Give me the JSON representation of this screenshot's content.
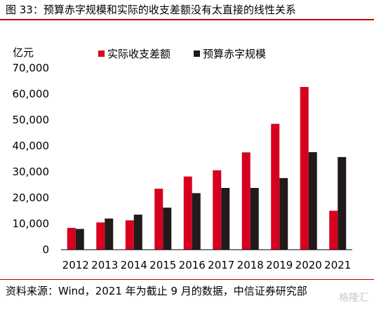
{
  "figure_title": "图 33：预算赤字规模和实际的收支差额没有太直接的线性关系",
  "source_note": "资料来源：Wind，2021 年为截止 9 月的数据，中信证券研究部",
  "watermark": "格隆汇",
  "colors": {
    "accent": "#c00000",
    "series_actual": "#d7001e",
    "series_budget": "#221a1a"
  },
  "chart_data": {
    "type": "bar",
    "ylabel": "亿元",
    "categories": [
      "2012",
      "2013",
      "2014",
      "2015",
      "2016",
      "2017",
      "2018",
      "2019",
      "2020",
      "2021"
    ],
    "ylim": [
      0,
      70000
    ],
    "yticks": [
      0,
      10000,
      20000,
      30000,
      40000,
      50000,
      60000,
      70000
    ],
    "ytick_labels": [
      "0",
      "10,000",
      "20,000",
      "30,000",
      "40,000",
      "50,000",
      "60,000",
      "70,000"
    ],
    "grid": false,
    "legend_position": "top",
    "series": [
      {
        "name": "实际收支差额",
        "color": "#d7001e",
        "values": [
          8400,
          10500,
          11300,
          23500,
          28200,
          30600,
          37500,
          48500,
          62700,
          15000
        ]
      },
      {
        "name": "预算赤字规模",
        "color": "#221a1a",
        "values": [
          8000,
          12000,
          13500,
          16200,
          21800,
          23800,
          23800,
          27600,
          37600,
          35700
        ]
      }
    ]
  }
}
